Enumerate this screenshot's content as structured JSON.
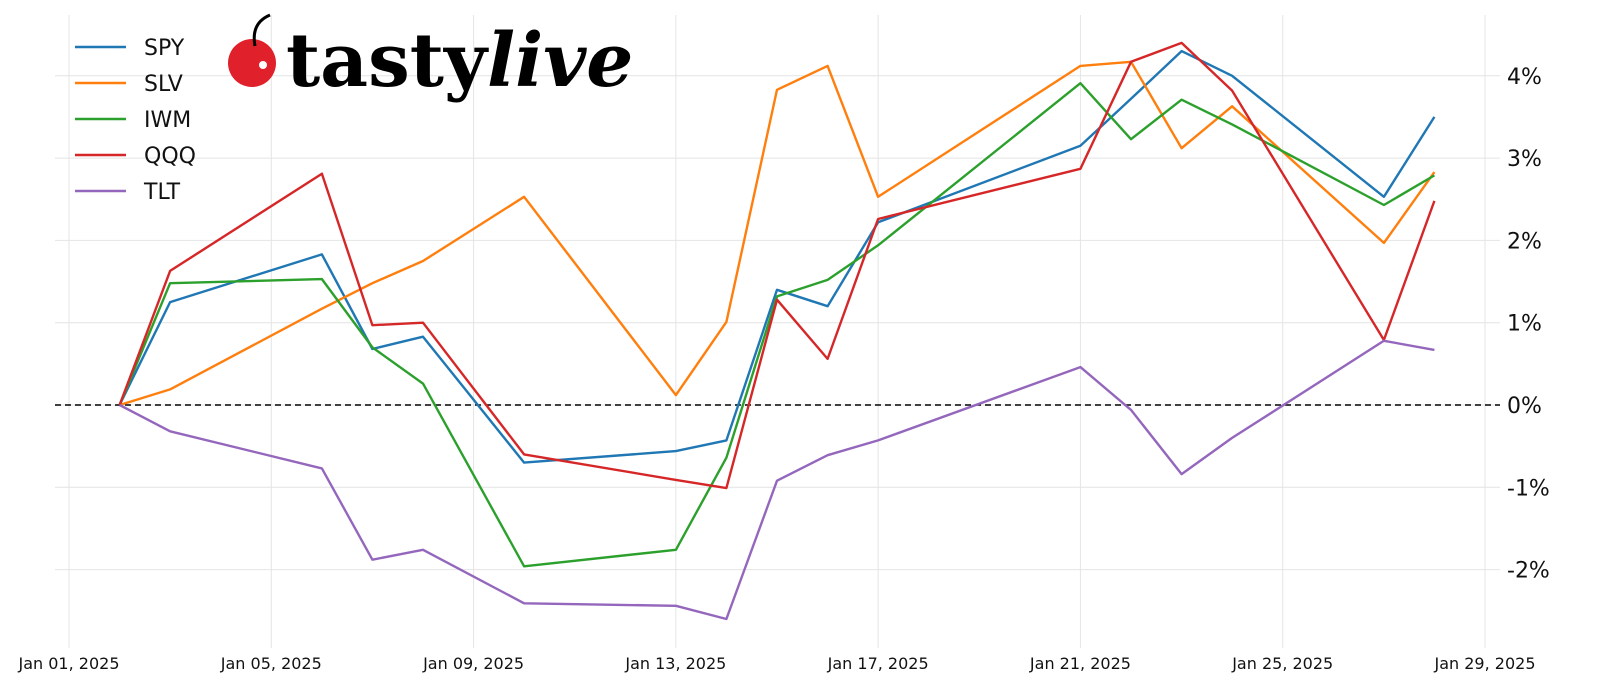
{
  "logo": {
    "text_plain": "tasty",
    "text_italic": "live",
    "cherry_color": "#e0202a"
  },
  "chart_data": {
    "type": "line",
    "title": "",
    "xlabel": "",
    "ylabel": "",
    "x": [
      "2025-01-02",
      "2025-01-03",
      "2025-01-06",
      "2025-01-07",
      "2025-01-08",
      "2025-01-10",
      "2025-01-13",
      "2025-01-14",
      "2025-01-15",
      "2025-01-16",
      "2025-01-17",
      "2025-01-21",
      "2025-01-22",
      "2025-01-23",
      "2025-01-24",
      "2025-01-27",
      "2025-01-28"
    ],
    "xlim": [
      "2025-01-01",
      "2025-01-29"
    ],
    "xticks": [
      {
        "date": "2025-01-01",
        "label": "Jan 01, 2025"
      },
      {
        "date": "2025-01-05",
        "label": "Jan 05, 2025"
      },
      {
        "date": "2025-01-09",
        "label": "Jan 09, 2025"
      },
      {
        "date": "2025-01-13",
        "label": "Jan 13, 2025"
      },
      {
        "date": "2025-01-17",
        "label": "Jan 17, 2025"
      },
      {
        "date": "2025-01-21",
        "label": "Jan 21, 2025"
      },
      {
        "date": "2025-01-25",
        "label": "Jan 25, 2025"
      },
      {
        "date": "2025-01-29",
        "label": "Jan 29, 2025"
      }
    ],
    "ylim": [
      -2.9,
      4.7
    ],
    "yticks": [
      {
        "value": -2,
        "label": "-2%"
      },
      {
        "value": -1,
        "label": "-1%"
      },
      {
        "value": 0,
        "label": "0%"
      },
      {
        "value": 1,
        "label": "1%"
      },
      {
        "value": 2,
        "label": "2%"
      },
      {
        "value": 3,
        "label": "3%"
      },
      {
        "value": 4,
        "label": "4%"
      }
    ],
    "y_axis_side": "right",
    "grid": true,
    "zero_line": {
      "value": 0,
      "style": "dashed",
      "color": "#000000"
    },
    "legend_position": "top-left",
    "series": [
      {
        "name": "SPY",
        "color": "#1f77b4",
        "values": [
          0,
          1.25,
          1.83,
          0.68,
          0.83,
          -0.7,
          -0.56,
          -0.43,
          1.4,
          1.2,
          2.22,
          3.15,
          3.72,
          4.3,
          4.0,
          2.53,
          3.5
        ]
      },
      {
        "name": "SLV",
        "color": "#ff7f0e",
        "values": [
          0,
          0.19,
          1.17,
          1.48,
          1.75,
          2.53,
          0.12,
          1.01,
          3.83,
          4.12,
          2.53,
          4.12,
          4.17,
          3.12,
          3.63,
          1.97,
          2.83
        ]
      },
      {
        "name": "IWM",
        "color": "#2ca02c",
        "values": [
          0,
          1.48,
          1.53,
          0.7,
          0.26,
          -1.96,
          -1.76,
          -0.64,
          1.32,
          1.52,
          1.94,
          3.91,
          3.23,
          3.71,
          3.41,
          2.43,
          2.79
        ]
      },
      {
        "name": "QQQ",
        "color": "#d62728",
        "values": [
          0,
          1.63,
          2.81,
          0.97,
          1.0,
          -0.6,
          -0.91,
          -1.01,
          1.28,
          0.56,
          2.26,
          2.87,
          4.17,
          4.4,
          3.82,
          0.79,
          2.48
        ]
      },
      {
        "name": "TLT",
        "color": "#9467bd",
        "values": [
          0,
          -0.32,
          -0.77,
          -1.88,
          -1.76,
          -2.41,
          -2.44,
          -2.6,
          -0.92,
          -0.61,
          -0.43,
          0.46,
          -0.06,
          -0.84,
          -0.4,
          0.78,
          0.67
        ]
      }
    ]
  }
}
